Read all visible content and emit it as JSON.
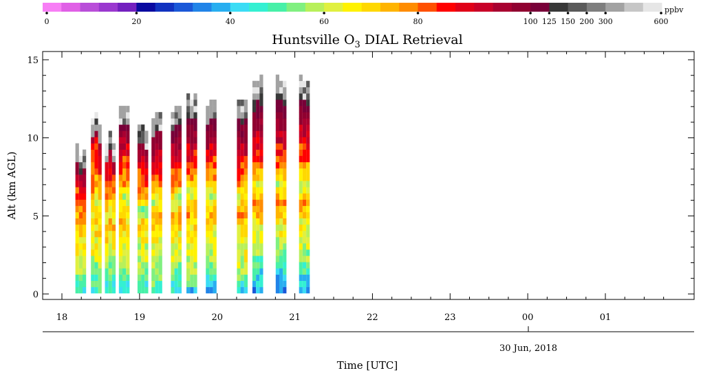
{
  "chart_data": {
    "type": "heatmap",
    "title": "Huntsville O",
    "title_sub": "3",
    "title_suffix": " DIAL Retrieval",
    "xlabel": "Time [UTC]",
    "ylabel": "Alt (km AGL)",
    "date_label": "30 Jun, 2018",
    "colorbar": {
      "unit": "ppbv",
      "colors": [
        "#f77ef5",
        "#e060e6",
        "#b94ed9",
        "#9a38cf",
        "#7320bf",
        "#0a0aa0",
        "#1132c0",
        "#1a58d8",
        "#2184e8",
        "#28aef0",
        "#3bdcf5",
        "#34f0d2",
        "#47f0a8",
        "#80f080",
        "#b8f05a",
        "#e0f040",
        "#fff200",
        "#ffd800",
        "#ffb400",
        "#ff8c00",
        "#ff5000",
        "#ff0000",
        "#e00018",
        "#c80028",
        "#a80030",
        "#900030",
        "#780038",
        "#383838",
        "#5a5a5a",
        "#7e7e7e",
        "#a2a2a2",
        "#c6c6c6",
        "#e6e6e6"
      ],
      "tick_labels": [
        "0",
        "20",
        "40",
        "60",
        "80",
        "100",
        "125",
        "150",
        "200",
        "300",
        "600"
      ]
    },
    "y_ticks": [
      "0",
      "5",
      "10",
      "15"
    ],
    "ylim": [
      0,
      15.5
    ],
    "x_ticks": [
      "18",
      "19",
      "20",
      "21",
      "22",
      "23",
      "00",
      "01"
    ],
    "xlim": [
      17.7,
      26.0
    ],
    "series": [
      {
        "x": 18.22,
        "top_km": 9.3,
        "o3_ppbv_by_alt": [
          45,
          52,
          58,
          62,
          66,
          68,
          65,
          72,
          76,
          80,
          84,
          88,
          96,
          104,
          110,
          120
        ]
      },
      {
        "x": 18.42,
        "top_km": 11.6,
        "o3_ppbv_by_alt": [
          47,
          54,
          60,
          64,
          67,
          70,
          62,
          74,
          80,
          84,
          90,
          100,
          116
        ]
      },
      {
        "x": 18.6,
        "top_km": 10.2,
        "o3_ppbv_by_alt": [
          44,
          51,
          57,
          63,
          68,
          72,
          64,
          76,
          82,
          86,
          92,
          110,
          122
        ]
      },
      {
        "x": 18.78,
        "top_km": 12.2,
        "o3_ppbv_by_alt": [
          42,
          52,
          60,
          64,
          66,
          72,
          58,
          78,
          82,
          88,
          100,
          120,
          140
        ]
      },
      {
        "x": 19.02,
        "top_km": 11.0,
        "o3_ppbv_by_alt": [
          44,
          50,
          58,
          60,
          64,
          70,
          56,
          76,
          82,
          88,
          104,
          122,
          150
        ]
      },
      {
        "x": 19.2,
        "top_km": 11.8,
        "o3_ppbv_by_alt": [
          46,
          54,
          60,
          62,
          66,
          74,
          60,
          78,
          84,
          90,
          108,
          124,
          150
        ]
      },
      {
        "x": 19.45,
        "top_km": 12.0,
        "o3_ppbv_by_alt": [
          44,
          52,
          58,
          64,
          68,
          74,
          58,
          78,
          84,
          92,
          110,
          130,
          160
        ]
      },
      {
        "x": 19.65,
        "top_km": 13.0,
        "o3_ppbv_by_alt": [
          42,
          54,
          60,
          66,
          68,
          76,
          60,
          80,
          86,
          94,
          112,
          132,
          170
        ]
      },
      {
        "x": 19.9,
        "top_km": 12.6,
        "o3_ppbv_by_alt": [
          40,
          50,
          58,
          64,
          66,
          74,
          58,
          80,
          84,
          92,
          110,
          128,
          160
        ]
      },
      {
        "x": 20.3,
        "top_km": 12.9,
        "o3_ppbv_by_alt": [
          44,
          54,
          62,
          66,
          70,
          80,
          62,
          80,
          86,
          94,
          112,
          130,
          170
        ]
      },
      {
        "x": 20.5,
        "top_km": 14.3,
        "o3_ppbv_by_alt": [
          38,
          46,
          56,
          64,
          68,
          78,
          60,
          80,
          86,
          96,
          114,
          134,
          190
        ]
      },
      {
        "x": 20.8,
        "top_km": 13.8,
        "o3_ppbv_by_alt": [
          36,
          44,
          54,
          62,
          66,
          76,
          58,
          80,
          86,
          96,
          110,
          130,
          180
        ]
      },
      {
        "x": 21.1,
        "top_km": 14.3,
        "o3_ppbv_by_alt": [
          38,
          46,
          56,
          62,
          66,
          76,
          58,
          78,
          84,
          94,
          108,
          128,
          200
        ]
      }
    ]
  }
}
